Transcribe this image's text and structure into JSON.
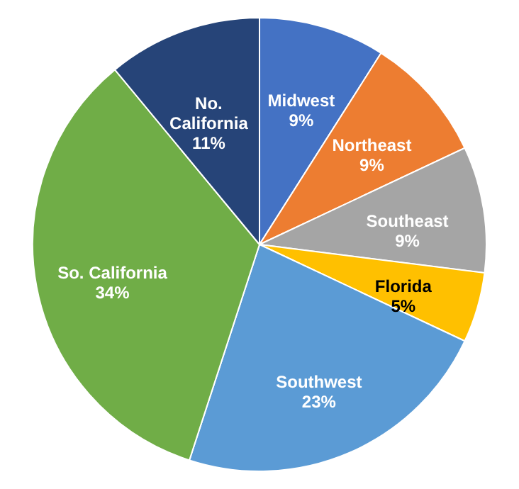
{
  "chart_data": {
    "type": "pie",
    "categories": [
      "Midwest",
      "Northeast",
      "Southeast",
      "Florida",
      "Southwest",
      "So. California",
      "No. California"
    ],
    "values": [
      9,
      9,
      9,
      5,
      23,
      34,
      11
    ],
    "value_labels": [
      "9%",
      "9%",
      "9%",
      "5%",
      "23%",
      "34%",
      "11%"
    ],
    "colors": [
      "#4472c4",
      "#ed7d31",
      "#a5a5a5",
      "#ffc000",
      "#5b9bd5",
      "#70ad47",
      "#264478"
    ]
  }
}
